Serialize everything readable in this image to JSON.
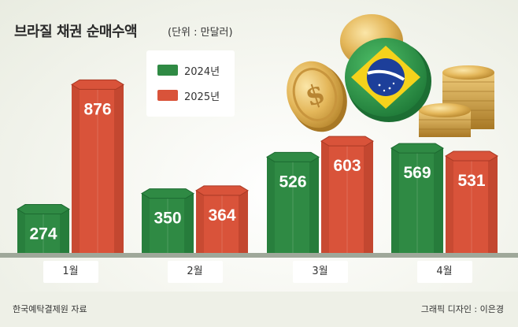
{
  "title": "브라질 채권 순매수액",
  "unit": "(단위 : 만달러)",
  "legend": {
    "series_a": "2024년",
    "series_b": "2025년"
  },
  "colors": {
    "series_a": "#2f8a44",
    "series_b": "#d9533a"
  },
  "chart_data": {
    "type": "bar",
    "title": "브라질 채권 순매수액",
    "unit": "(단위 : 만달러)",
    "categories": [
      "1월",
      "2월",
      "3월",
      "4월"
    ],
    "series": [
      {
        "name": "2024년",
        "values": [
          274,
          350,
          526,
          569
        ]
      },
      {
        "name": "2025년",
        "values": [
          876,
          364,
          603,
          531
        ]
      }
    ],
    "ylim": [
      0,
      950
    ],
    "legend_position": "top-left",
    "grid": false
  },
  "footer": {
    "source": "한국예탁결제원 자료",
    "credit": "그래픽 디자인 : 이은경"
  }
}
